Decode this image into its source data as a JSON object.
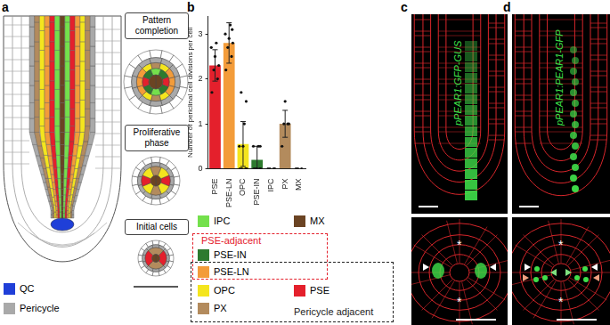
{
  "panels": {
    "a": {
      "label": "a",
      "stages": [
        "Pattern completion",
        "Proliferative phase",
        "Initial cells"
      ],
      "legend": [
        {
          "name": "QC",
          "color": "#1f3fd8"
        },
        {
          "name": "Pericycle",
          "color": "#a9a9a9"
        }
      ]
    },
    "b": {
      "label": "b"
    },
    "c": {
      "label": "c",
      "annotation": "pPEAR1:GFP-GUS",
      "asterisk": "*"
    },
    "d": {
      "label": "d",
      "annotation": "pPEAR1:PEAR1-GFP",
      "asterisk": "*"
    }
  },
  "key": {
    "items": [
      {
        "name": "IPC",
        "color": "#74e04c"
      },
      {
        "name": "MX",
        "color": "#6b4423"
      },
      {
        "name": "PSE-IN",
        "color": "#2d7a2e"
      },
      {
        "name": "PSE-LN",
        "color": "#f39c3a"
      },
      {
        "name": "OPC",
        "color": "#f4e51e"
      },
      {
        "name": "PX",
        "color": "#b38b5d"
      },
      {
        "name": "PSE",
        "color": "#e4202c"
      }
    ],
    "groups": {
      "pse_adjacent": "PSE-adjacent",
      "pericycle_adjacent": "Pericycle adjacent"
    }
  },
  "chart_data": {
    "type": "bar",
    "categories": [
      "PSE",
      "PSE-LN",
      "OPC",
      "PSE-IN",
      "IPC",
      "PX",
      "MX"
    ],
    "values": [
      2.3,
      2.8,
      0.55,
      0.2,
      0,
      1.0,
      0
    ],
    "errors": [
      0.35,
      0.45,
      0.5,
      0.3,
      0,
      0.3,
      0
    ],
    "points": [
      [
        1.7,
        2.0,
        2.2,
        2.3,
        2.5,
        2.7,
        2.8
      ],
      [
        2.2,
        2.5,
        2.7,
        2.8,
        2.9,
        3.0,
        3.2,
        3.1
      ],
      [
        0,
        0,
        0,
        0,
        0.5,
        0.5,
        1,
        1.5,
        1.7
      ],
      [
        0,
        0,
        0,
        0,
        0,
        0.5,
        0.5,
        0.5
      ],
      [
        0,
        0,
        0,
        0
      ],
      [
        0.5,
        1,
        1,
        1,
        1.5
      ],
      [
        0,
        0,
        0
      ]
    ],
    "colors": [
      "#e4202c",
      "#f39c3a",
      "#f4e51e",
      "#2d7a2e",
      "#74e04c",
      "#b38b5d",
      "#6b4423"
    ],
    "y_label": "Number of periclinal cell divisions per cell",
    "ylim": [
      0,
      3.4
    ],
    "yticks": [
      0,
      1,
      2,
      3
    ],
    "grid": false
  }
}
